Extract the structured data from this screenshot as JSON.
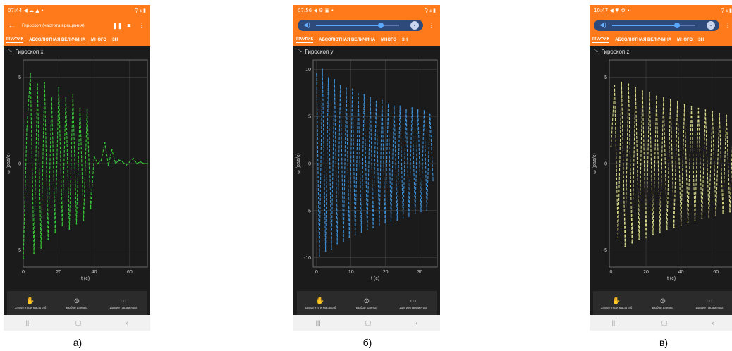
{
  "panels": [
    {
      "status_time": "07:44",
      "status_icons": "◀ ☁ ▲ •",
      "status_right": "⚲ ₄ ▮",
      "appbar_mode": "title",
      "title": "Гироскоп (частота вращения)",
      "tabs": [
        "ГРАФИК",
        "АБСОЛЮТНАЯ ВЕЛИЧИНА",
        "МНОГО",
        "ЗН"
      ],
      "plot_title": "Гироскоп x",
      "ylabel": "ω (рад/с)",
      "xlabel": "t (с)",
      "yticks": [
        "5",
        "0",
        "-5"
      ],
      "xticks": [
        "0",
        "20",
        "40",
        "60"
      ],
      "tools": [
        "Захватить и масштаб",
        "Выбор данных",
        "Другие параметры"
      ],
      "caption": "а)",
      "color": "#37c837",
      "chart_data": {
        "type": "line",
        "x_range": [
          0,
          70
        ],
        "y_range": [
          -6,
          6
        ],
        "series": [
          {
            "x": [
              0,
              2,
              4,
              6,
              8,
              10,
              12,
              14,
              16,
              18,
              20,
              22,
              24,
              26,
              28,
              30,
              32,
              34,
              36,
              38,
              40,
              42,
              44,
              46,
              48,
              50,
              52,
              54,
              56,
              58,
              60,
              62,
              64,
              66,
              68,
              70
            ],
            "y": [
              -5.5,
              2,
              5.2,
              -5.2,
              4.6,
              -4.9,
              4.7,
              -4.4,
              3.8,
              -4,
              4.4,
              -3.6,
              3.8,
              -3.8,
              4,
              -3.5,
              3.2,
              -3.3,
              3.1,
              -2.6,
              0.4,
              0,
              0.2,
              1.2,
              -0.1,
              0.8,
              0,
              0.2,
              0.1,
              -0.1,
              0.1,
              0.3,
              0,
              0.1,
              0,
              0
            ]
          }
        ]
      }
    },
    {
      "status_time": "07:56",
      "status_icons": "◀ ⚙ ▣ •",
      "status_right": "⚲ ₄ ▮",
      "appbar_mode": "volume",
      "volume_level": 0.78,
      "tabs": [
        "ГРАФИК",
        "АБСОЛЮТНАЯ ВЕЛИЧИНА",
        "МНОГО",
        "ЗН"
      ],
      "plot_title": "Гироскоп y",
      "ylabel": "ω (рад/с)",
      "xlabel": "t (с)",
      "yticks": [
        "10",
        "5",
        "0",
        "-5",
        "-10"
      ],
      "xticks": [
        "0",
        "10",
        "20",
        "30"
      ],
      "tools": [
        "Захватить и масштаб",
        "Выбор данных",
        "Другие параметры"
      ],
      "caption": "б)",
      "color": "#3d8fd6",
      "chart_data": {
        "type": "line",
        "x_range": [
          -1,
          35
        ],
        "y_range": [
          -11,
          11
        ],
        "series": [
          {
            "x": [
              0,
              0.8,
              1.7,
              2.6,
              3.4,
              4.3,
              5.2,
              6.0,
              6.9,
              7.8,
              8.6,
              9.5,
              10.4,
              11.2,
              12.1,
              13.0,
              13.8,
              14.7,
              15.6,
              16.4,
              17.3,
              18.2,
              19.0,
              19.9,
              20.8,
              21.6,
              22.5,
              23.4,
              24.2,
              25.1,
              26.0,
              26.8,
              27.7,
              28.6,
              29.4,
              30.3,
              31.2,
              32.0,
              32.9,
              33.8
            ],
            "y": [
              9.5,
              -9.8,
              10,
              -9.3,
              9.1,
              -9.1,
              8.9,
              -8.5,
              8.3,
              -8.3,
              8.0,
              -7.8,
              7.9,
              -7.6,
              7.4,
              -7.3,
              7.3,
              -7.0,
              7.0,
              -6.8,
              6.6,
              -6.5,
              6.7,
              -6.3,
              6.3,
              -6.1,
              6.1,
              -6.0,
              6.1,
              -5.8,
              5.7,
              -5.6,
              5.9,
              -5.3,
              5.7,
              -5.1,
              5.6,
              -5.0,
              5.2,
              -1.8
            ]
          }
        ]
      }
    },
    {
      "status_time": "10:47",
      "status_icons": "◀ ♥ ⚙ •",
      "status_right": "⚲ ₄ ▮",
      "appbar_mode": "volume",
      "volume_level": 0.78,
      "tabs": [
        "ГРАФИК",
        "АБСОЛЮТНАЯ ВЕЛИЧИНА",
        "МНОГО",
        "ЗН"
      ],
      "plot_title": "Гироскоп z",
      "ylabel": "ω (рад/с)",
      "xlabel": "t (с)",
      "yticks": [
        "5",
        "0",
        "-5"
      ],
      "xticks": [
        "0",
        "20",
        "40",
        "60"
      ],
      "tools": [
        "Захватить и масштаб",
        "Выбор данных",
        "Другие параметры"
      ],
      "caption": "в)",
      "color": "#d9d98a",
      "chart_data": {
        "type": "line",
        "x_range": [
          -1,
          70
        ],
        "y_range": [
          -6,
          6
        ],
        "series": [
          {
            "x": [
              0,
              2,
              4,
              6,
              8,
              10,
              12,
              14,
              16,
              18,
              20,
              22,
              24,
              26,
              28,
              30,
              32,
              34,
              36,
              38,
              40,
              42,
              44,
              46,
              48,
              50,
              52,
              54,
              56,
              58,
              60,
              62,
              64,
              66,
              68,
              70
            ],
            "y": [
              1,
              4.5,
              -4.3,
              4.7,
              -4.8,
              4.6,
              -4.6,
              4.4,
              -4.4,
              4.2,
              -4.3,
              4.1,
              -4.1,
              3.9,
              -4.0,
              3.8,
              -3.8,
              3.7,
              -3.7,
              3.6,
              -3.6,
              3.4,
              -3.4,
              3.3,
              -3.3,
              3.2,
              -3.2,
              3.1,
              -3.1,
              3.0,
              -3.0,
              2.9,
              -2.9,
              2.8,
              -2.8,
              2.7
            ]
          }
        ]
      }
    }
  ]
}
